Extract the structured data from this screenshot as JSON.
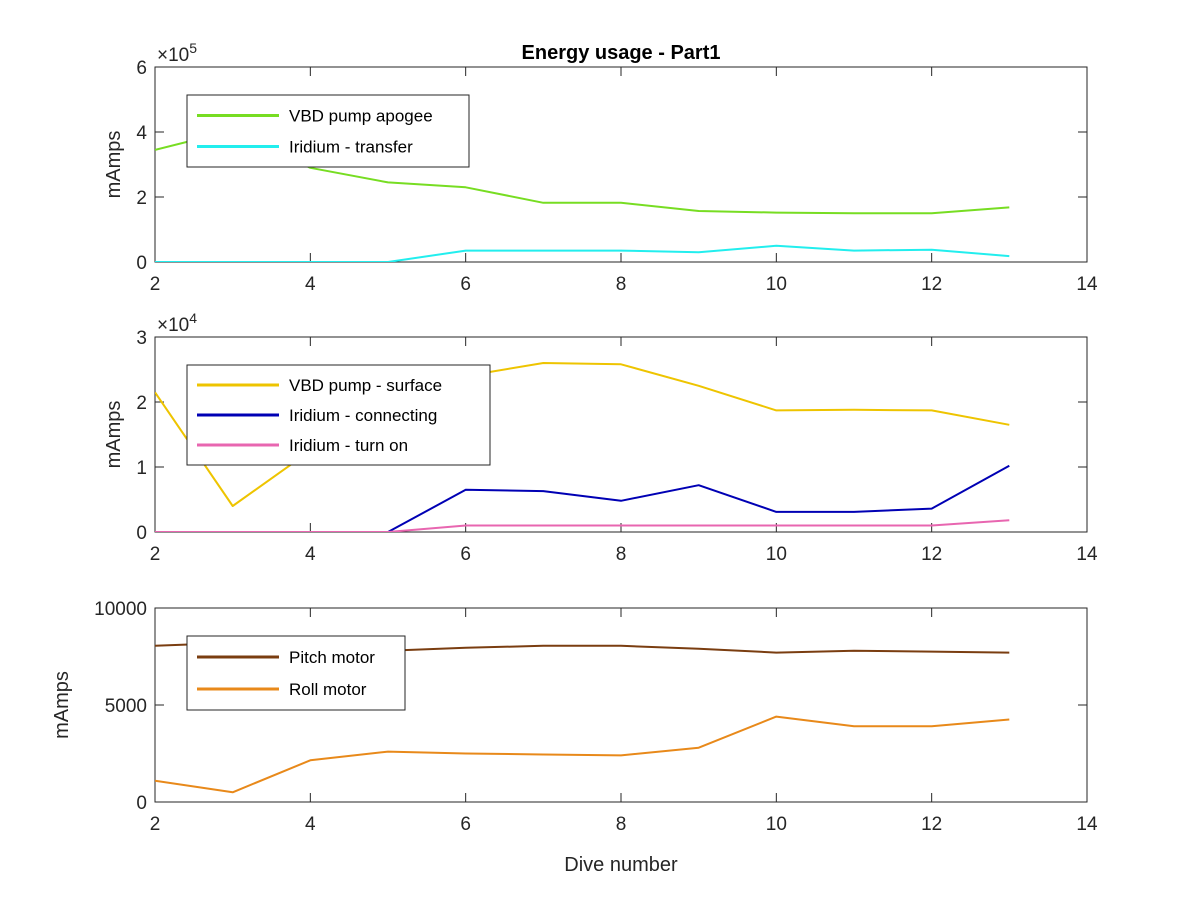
{
  "chart_data": [
    {
      "type": "line",
      "title": "Energy usage - Part1",
      "xlabel": "",
      "ylabel": "mAmps",
      "y_exponent": "×10^5",
      "y_exponent_base": "×10",
      "y_exponent_power": "5",
      "xlim": [
        2,
        14
      ],
      "ylim": [
        0,
        600000
      ],
      "xticks": [
        2,
        4,
        6,
        8,
        10,
        12,
        14
      ],
      "yticks": [
        0,
        200000,
        400000,
        600000
      ],
      "ytick_labels": [
        "0",
        "2",
        "4",
        "6"
      ],
      "legend_position": "top-left",
      "x": [
        2,
        3,
        4,
        5,
        6,
        7,
        8,
        9,
        10,
        11,
        12,
        13
      ],
      "series": [
        {
          "name": "VBD pump apogee",
          "color": "#77dd22",
          "values": [
            345000,
            405000,
            290000,
            245000,
            230000,
            182000,
            182000,
            157000,
            152000,
            150000,
            150000,
            168000
          ]
        },
        {
          "name": "Iridium - transfer",
          "color": "#22eeee",
          "values": [
            0,
            0,
            0,
            0,
            35000,
            35000,
            35000,
            30000,
            50000,
            35000,
            38000,
            18000
          ]
        }
      ]
    },
    {
      "type": "line",
      "title": "",
      "xlabel": "",
      "ylabel": "mAmps",
      "y_exponent": "×10^4",
      "y_exponent_base": "×10",
      "y_exponent_power": "4",
      "xlim": [
        2,
        14
      ],
      "ylim": [
        0,
        30000
      ],
      "xticks": [
        2,
        4,
        6,
        8,
        10,
        12,
        14
      ],
      "yticks": [
        0,
        10000,
        20000,
        30000
      ],
      "ytick_labels": [
        "0",
        "1",
        "2",
        "3"
      ],
      "legend_position": "top-left",
      "x": [
        2,
        3,
        4,
        5,
        6,
        7,
        8,
        9,
        10,
        11,
        12,
        13
      ],
      "series": [
        {
          "name": "VBD pump - surface",
          "color": "#eec400",
          "values": [
            21500,
            4000,
            12500,
            22000,
            24000,
            26000,
            25800,
            22500,
            18700,
            18800,
            18700,
            16500
          ]
        },
        {
          "name": "Iridium - connecting",
          "color": "#0000b4",
          "values": [
            0,
            0,
            0,
            0,
            6500,
            6300,
            4800,
            7200,
            3100,
            3100,
            3600,
            10200
          ]
        },
        {
          "name": "Iridium - turn on",
          "color": "#e866b0",
          "values": [
            0,
            0,
            0,
            0,
            1000,
            1000,
            1000,
            1000,
            1000,
            1000,
            1000,
            1800
          ]
        }
      ]
    },
    {
      "type": "line",
      "title": "",
      "xlabel": "Dive number",
      "ylabel": "mAmps",
      "xlim": [
        2,
        14
      ],
      "ylim": [
        0,
        10000
      ],
      "xticks": [
        2,
        4,
        6,
        8,
        10,
        12,
        14
      ],
      "yticks": [
        0,
        5000,
        10000
      ],
      "ytick_labels": [
        "0",
        "5000",
        "10000"
      ],
      "legend_position": "top-left",
      "x": [
        2,
        3,
        4,
        5,
        6,
        7,
        8,
        9,
        10,
        11,
        12,
        13
      ],
      "series": [
        {
          "name": "Pitch motor",
          "color": "#7a3d10",
          "values": [
            8050,
            8200,
            7800,
            7800,
            7950,
            8050,
            8050,
            7900,
            7700,
            7800,
            7750,
            7700
          ]
        },
        {
          "name": "Roll motor",
          "color": "#e8891a",
          "values": [
            1100,
            500,
            2150,
            2600,
            2500,
            2450,
            2400,
            2800,
            4400,
            3900,
            3900,
            4250
          ]
        }
      ]
    }
  ]
}
